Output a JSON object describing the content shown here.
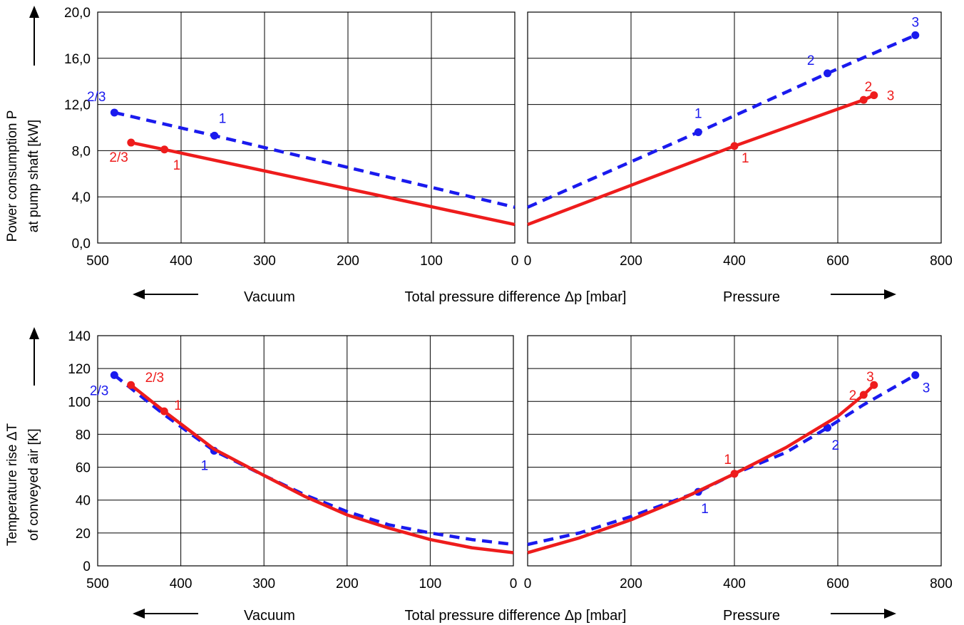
{
  "chart_data": [
    {
      "type": "line",
      "ylabel_lines": [
        "Power consumption P",
        "at pump shaft [kW]"
      ],
      "ylim": [
        0,
        20
      ],
      "ytick_labels": [
        "0,0",
        "4,0",
        "8,0",
        "12,0",
        "16,0",
        "20,0"
      ],
      "ytick_values": [
        0,
        4,
        8,
        12,
        16,
        20
      ],
      "x_bottom_label": "Total pressure difference Δp [mbar]",
      "left_region_label": "Vacuum",
      "right_region_label": "Pressure",
      "left_panel": {
        "xlim": [
          500,
          0
        ],
        "xtick_values": [
          500,
          400,
          300,
          200,
          100,
          0
        ],
        "xtick_labels": [
          "500",
          "400",
          "300",
          "200",
          "100",
          "0"
        ]
      },
      "right_panel": {
        "xlim": [
          0,
          800
        ],
        "xtick_values": [
          0,
          200,
          400,
          600,
          800
        ],
        "xtick_labels": [
          "0",
          "200",
          "400",
          "600",
          "800"
        ]
      },
      "series": [
        {
          "color": "#1a1aee",
          "style": "dashed",
          "vacuum_line": [
            [
              480,
              11.3
            ],
            [
              360,
              9.3
            ],
            [
              0,
              3.1
            ]
          ],
          "vacuum_points": [
            {
              "x": 480,
              "y": 11.3,
              "label": "2/3"
            },
            {
              "x": 360,
              "y": 9.3,
              "label": "1"
            }
          ],
          "pressure_line": [
            [
              0,
              3.1
            ],
            [
              330,
              9.6
            ],
            [
              580,
              14.7
            ],
            [
              750,
              18.0
            ]
          ],
          "pressure_points": [
            {
              "x": 330,
              "y": 9.6,
              "label": "1"
            },
            {
              "x": 580,
              "y": 14.7,
              "label": "2"
            },
            {
              "x": 750,
              "y": 18.0,
              "label": "3"
            }
          ]
        },
        {
          "color": "#ee1c1c",
          "style": "solid",
          "vacuum_line": [
            [
              460,
              8.7
            ],
            [
              420,
              8.1
            ],
            [
              0,
              1.6
            ]
          ],
          "vacuum_points": [
            {
              "x": 460,
              "y": 8.7,
              "label": "2/3"
            },
            {
              "x": 420,
              "y": 8.1,
              "label": "1"
            }
          ],
          "pressure_line": [
            [
              0,
              1.6
            ],
            [
              400,
              8.4
            ],
            [
              650,
              12.4
            ],
            [
              670,
              12.8
            ]
          ],
          "pressure_points": [
            {
              "x": 400,
              "y": 8.4,
              "label": "1"
            },
            {
              "x": 650,
              "y": 12.4,
              "label": "2"
            },
            {
              "x": 670,
              "y": 12.8,
              "label": "3"
            }
          ]
        }
      ]
    },
    {
      "type": "line",
      "ylabel_lines": [
        "Temperature rise ΔT",
        "of conveyed air [K]"
      ],
      "ylim": [
        0,
        140
      ],
      "ytick_labels": [
        "0",
        "20",
        "40",
        "60",
        "80",
        "100",
        "120",
        "140"
      ],
      "ytick_values": [
        0,
        20,
        40,
        60,
        80,
        100,
        120,
        140
      ],
      "x_bottom_label": "Total pressure difference Δp [mbar]",
      "left_region_label": "Vacuum",
      "right_region_label": "Pressure",
      "left_panel": {
        "xlim": [
          500,
          0
        ],
        "xtick_values": [
          500,
          400,
          300,
          200,
          100,
          0
        ],
        "xtick_labels": [
          "500",
          "400",
          "300",
          "200",
          "100",
          "0"
        ]
      },
      "right_panel": {
        "xlim": [
          0,
          800
        ],
        "xtick_values": [
          0,
          200,
          400,
          600,
          800
        ],
        "xtick_labels": [
          "0",
          "200",
          "400",
          "600",
          "800"
        ]
      },
      "series": [
        {
          "color": "#1a1aee",
          "style": "dashed",
          "vacuum_line": [
            [
              480,
              116
            ],
            [
              420,
              92
            ],
            [
              360,
              70
            ],
            [
              300,
              55
            ],
            [
              250,
              43
            ],
            [
              200,
              33
            ],
            [
              150,
              25
            ],
            [
              100,
              20
            ],
            [
              50,
              16
            ],
            [
              0,
              13
            ]
          ],
          "vacuum_points": [
            {
              "x": 480,
              "y": 116,
              "label": "2/3"
            },
            {
              "x": 360,
              "y": 70,
              "label": "1"
            }
          ],
          "pressure_line": [
            [
              0,
              13
            ],
            [
              100,
              20
            ],
            [
              200,
              30
            ],
            [
              330,
              45
            ],
            [
              400,
              56
            ],
            [
              500,
              69
            ],
            [
              580,
              84
            ],
            [
              650,
              98
            ],
            [
              750,
              116
            ]
          ],
          "pressure_points": [
            {
              "x": 330,
              "y": 45,
              "label": "1"
            },
            {
              "x": 580,
              "y": 84,
              "label": "2"
            },
            {
              "x": 750,
              "y": 116,
              "label": "3"
            }
          ]
        },
        {
          "color": "#ee1c1c",
          "style": "solid",
          "vacuum_line": [
            [
              460,
              110
            ],
            [
              420,
              94
            ],
            [
              360,
              71
            ],
            [
              300,
              55
            ],
            [
              250,
              42
            ],
            [
              200,
              31
            ],
            [
              150,
              23
            ],
            [
              100,
              16
            ],
            [
              50,
              11
            ],
            [
              0,
              8
            ]
          ],
          "vacuum_points": [
            {
              "x": 460,
              "y": 110,
              "label": "2/3"
            },
            {
              "x": 420,
              "y": 94,
              "label": "1"
            }
          ],
          "pressure_line": [
            [
              0,
              8
            ],
            [
              100,
              17
            ],
            [
              200,
              28
            ],
            [
              300,
              41
            ],
            [
              400,
              56
            ],
            [
              500,
              72
            ],
            [
              600,
              91
            ],
            [
              650,
              104
            ],
            [
              670,
              110
            ]
          ],
          "pressure_points": [
            {
              "x": 400,
              "y": 56,
              "label": "1"
            },
            {
              "x": 650,
              "y": 104,
              "label": "2"
            },
            {
              "x": 670,
              "y": 110,
              "label": "3"
            }
          ]
        }
      ]
    }
  ]
}
